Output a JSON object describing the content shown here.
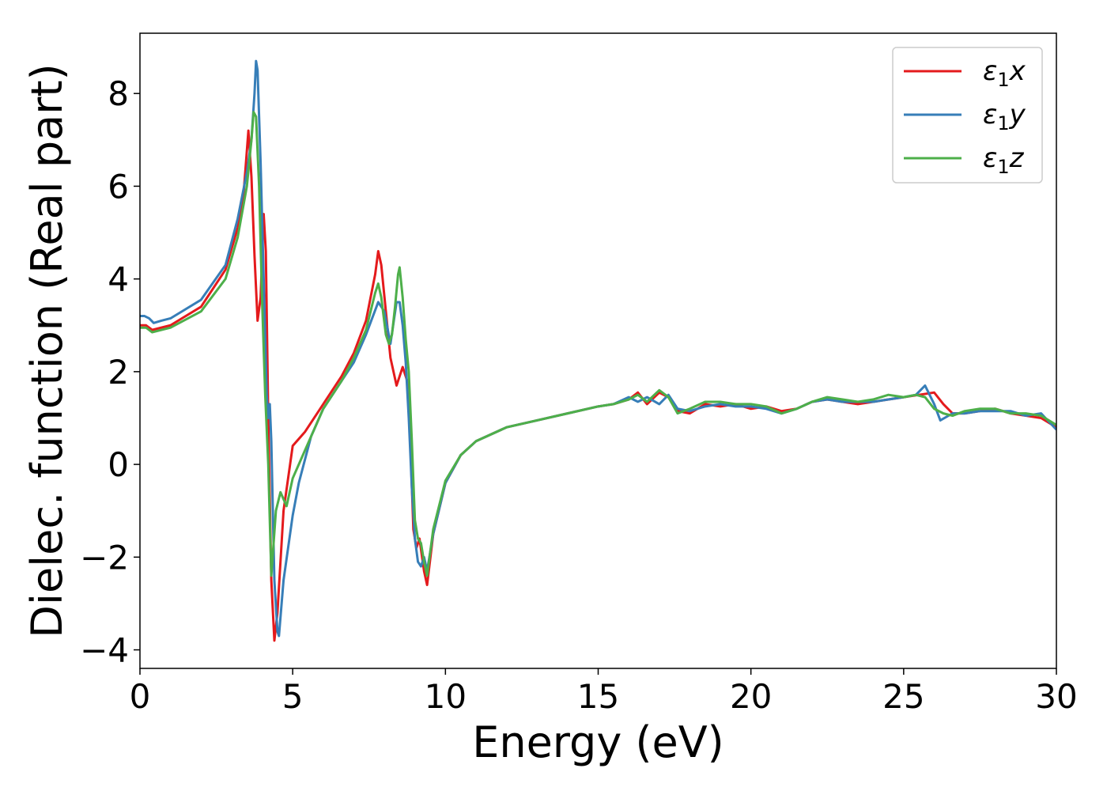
{
  "chart_data": {
    "type": "line",
    "title": "",
    "xlabel": "Energy (eV)",
    "ylabel": "Dielec. function (Real part)",
    "xlim": [
      0,
      30
    ],
    "ylim": [
      -4.4,
      9.3
    ],
    "x_ticks": [
      0,
      5,
      10,
      15,
      20,
      25,
      30
    ],
    "x_tick_labels": [
      "0",
      "5",
      "10",
      "15",
      "20",
      "25",
      "30"
    ],
    "y_ticks": [
      -4,
      -2,
      0,
      2,
      4,
      6,
      8
    ],
    "y_tick_labels": [
      "−4",
      "−2",
      "0",
      "2",
      "4",
      "6",
      "8"
    ],
    "grid": false,
    "legend_position": "top-right",
    "series": [
      {
        "name": "ε₁x",
        "legend": {
          "symbol": "ε",
          "sub": "1",
          "var": "x"
        },
        "color": "#e41a1c",
        "x": [
          0,
          0.2,
          0.4,
          1.0,
          2.0,
          2.8,
          3.2,
          3.4,
          3.55,
          3.65,
          3.75,
          3.85,
          3.95,
          4.05,
          4.12,
          4.2,
          4.3,
          4.4,
          4.5,
          4.7,
          5.0,
          5.4,
          6.0,
          6.6,
          7.0,
          7.4,
          7.7,
          7.8,
          7.9,
          8.05,
          8.2,
          8.4,
          8.6,
          8.75,
          8.85,
          8.95,
          9.05,
          9.15,
          9.3,
          9.4,
          9.6,
          10.0,
          10.5,
          11.0,
          12.0,
          13.0,
          14.0,
          15.0,
          15.5,
          16.0,
          16.3,
          16.6,
          17.0,
          17.3,
          17.6,
          18.0,
          18.5,
          19.0,
          19.5,
          20.0,
          20.5,
          21.0,
          21.5,
          22.0,
          22.5,
          23.0,
          23.5,
          24.0,
          24.5,
          25.0,
          25.5,
          26.0,
          26.3,
          26.6,
          27.0,
          27.5,
          28.0,
          28.5,
          29.0,
          29.5,
          30.0
        ],
        "y": [
          3.0,
          3.0,
          2.9,
          3.0,
          3.4,
          4.2,
          5.1,
          5.9,
          7.2,
          6.2,
          4.5,
          3.1,
          3.6,
          5.4,
          4.6,
          1.0,
          -2.5,
          -3.8,
          -3.2,
          -1.0,
          0.4,
          0.7,
          1.3,
          1.9,
          2.4,
          3.1,
          4.1,
          4.6,
          4.3,
          3.3,
          2.3,
          1.7,
          2.1,
          1.8,
          0.5,
          -1.4,
          -1.8,
          -1.6,
          -2.3,
          -2.6,
          -1.5,
          -0.4,
          0.2,
          0.5,
          0.8,
          0.95,
          1.1,
          1.25,
          1.3,
          1.4,
          1.55,
          1.3,
          1.55,
          1.45,
          1.15,
          1.1,
          1.3,
          1.25,
          1.3,
          1.2,
          1.25,
          1.15,
          1.2,
          1.35,
          1.4,
          1.35,
          1.3,
          1.35,
          1.4,
          1.45,
          1.5,
          1.55,
          1.3,
          1.1,
          1.1,
          1.15,
          1.2,
          1.1,
          1.05,
          1.0,
          0.8
        ]
      },
      {
        "name": "ε₁y",
        "legend": {
          "symbol": "ε",
          "sub": "1",
          "var": "y"
        },
        "color": "#377eb8",
        "x": [
          0,
          0.15,
          0.3,
          0.45,
          0.7,
          1.0,
          2.0,
          2.8,
          3.2,
          3.5,
          3.65,
          3.75,
          3.8,
          3.85,
          3.95,
          4.05,
          4.15,
          4.2,
          4.25,
          4.3,
          4.4,
          4.5,
          4.55,
          4.7,
          5.0,
          5.2,
          5.6,
          6.0,
          6.6,
          7.0,
          7.4,
          7.8,
          8.0,
          8.2,
          8.4,
          8.5,
          8.6,
          8.7,
          8.8,
          8.9,
          9.0,
          9.1,
          9.2,
          9.3,
          9.4,
          9.6,
          10.0,
          10.5,
          11.0,
          12.0,
          13.0,
          14.0,
          15.0,
          15.5,
          16.0,
          16.3,
          16.6,
          17.0,
          17.3,
          17.6,
          18.0,
          18.5,
          19.0,
          19.5,
          20.0,
          20.5,
          21.0,
          21.5,
          22.0,
          22.5,
          23.0,
          23.5,
          24.0,
          24.5,
          25.0,
          25.4,
          25.7,
          26.0,
          26.2,
          26.6,
          27.0,
          27.5,
          28.0,
          28.5,
          29.0,
          29.5,
          30.0
        ],
        "y": [
          3.2,
          3.2,
          3.15,
          3.05,
          3.1,
          3.15,
          3.55,
          4.3,
          5.3,
          6.3,
          7.0,
          8.0,
          8.7,
          8.5,
          6.5,
          4.0,
          1.5,
          1.0,
          1.3,
          0.5,
          -2.5,
          -3.6,
          -3.7,
          -2.5,
          -1.1,
          -0.4,
          0.6,
          1.2,
          1.8,
          2.2,
          2.8,
          3.5,
          3.3,
          2.6,
          3.5,
          3.5,
          3.0,
          2.2,
          1.0,
          -0.5,
          -1.6,
          -2.1,
          -2.2,
          -2.0,
          -2.3,
          -1.5,
          -0.4,
          0.2,
          0.5,
          0.8,
          0.95,
          1.1,
          1.25,
          1.3,
          1.45,
          1.35,
          1.45,
          1.3,
          1.5,
          1.2,
          1.15,
          1.25,
          1.3,
          1.25,
          1.25,
          1.2,
          1.1,
          1.2,
          1.35,
          1.4,
          1.35,
          1.35,
          1.35,
          1.4,
          1.45,
          1.5,
          1.7,
          1.3,
          0.95,
          1.1,
          1.1,
          1.15,
          1.15,
          1.15,
          1.05,
          1.1,
          0.75
        ]
      },
      {
        "name": "ε₁z",
        "legend": {
          "symbol": "ε",
          "sub": "1",
          "var": "z"
        },
        "color": "#4daf4a",
        "x": [
          0,
          0.2,
          0.4,
          1.0,
          2.0,
          2.8,
          3.2,
          3.5,
          3.65,
          3.72,
          3.8,
          3.9,
          4.0,
          4.1,
          4.2,
          4.3,
          4.45,
          4.6,
          4.8,
          5.0,
          5.2,
          5.6,
          6.0,
          6.6,
          7.0,
          7.4,
          7.7,
          7.8,
          7.9,
          8.05,
          8.15,
          8.25,
          8.35,
          8.45,
          8.5,
          8.6,
          8.7,
          8.8,
          8.9,
          9.0,
          9.1,
          9.2,
          9.3,
          9.4,
          9.6,
          10.0,
          10.5,
          11.0,
          12.0,
          13.0,
          14.0,
          15.0,
          15.5,
          16.0,
          16.3,
          16.6,
          17.0,
          17.3,
          17.6,
          18.0,
          18.5,
          19.0,
          19.5,
          20.0,
          20.5,
          21.0,
          21.5,
          22.0,
          22.5,
          23.0,
          23.5,
          24.0,
          24.5,
          25.0,
          25.4,
          25.7,
          26.0,
          26.3,
          26.6,
          27.0,
          27.5,
          28.0,
          28.5,
          29.0,
          29.5,
          30.0
        ],
        "y": [
          2.95,
          2.95,
          2.85,
          2.95,
          3.3,
          4.0,
          4.9,
          6.0,
          7.0,
          7.6,
          7.5,
          6.0,
          3.5,
          1.5,
          0.0,
          -2.4,
          -1.0,
          -0.6,
          -0.9,
          -0.3,
          0.0,
          0.6,
          1.2,
          1.8,
          2.3,
          2.9,
          3.7,
          3.9,
          3.6,
          2.8,
          2.6,
          2.8,
          3.4,
          4.1,
          4.25,
          3.6,
          2.7,
          2.0,
          0.5,
          -1.2,
          -1.6,
          -1.7,
          -2.1,
          -2.4,
          -1.4,
          -0.35,
          0.2,
          0.5,
          0.8,
          0.95,
          1.1,
          1.25,
          1.3,
          1.4,
          1.5,
          1.35,
          1.6,
          1.45,
          1.1,
          1.2,
          1.35,
          1.35,
          1.3,
          1.3,
          1.25,
          1.1,
          1.2,
          1.35,
          1.45,
          1.4,
          1.35,
          1.4,
          1.5,
          1.45,
          1.5,
          1.45,
          1.2,
          1.1,
          1.05,
          1.15,
          1.2,
          1.2,
          1.1,
          1.1,
          1.05,
          0.85
        ]
      }
    ]
  }
}
